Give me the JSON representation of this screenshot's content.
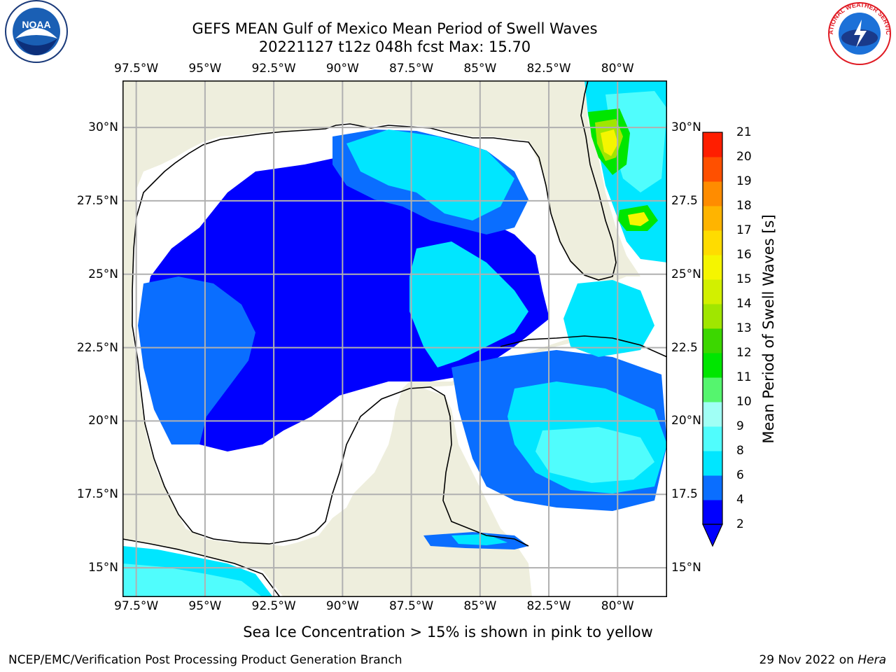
{
  "title": {
    "line1": "GEFS MEAN Gulf of Mexico Mean Period of Swell Waves",
    "line2": "20221127 t12z 048h fcst   Max: 15.70"
  },
  "axes": {
    "lon_ticks": [
      "97.5°W",
      "95°W",
      "92.5°W",
      "90°W",
      "87.5°W",
      "85°W",
      "82.5°W",
      "80°W"
    ],
    "lat_ticks_left": [
      "30°N",
      "27.5°N",
      "25°N",
      "22.5°N",
      "20°N",
      "17.5°N",
      "15°N"
    ],
    "lat_ticks_right": [
      "30°N",
      "27.5",
      "25°N",
      "22.5",
      "20°N",
      "17.5",
      "15°N"
    ],
    "lon_values": [
      -97.5,
      -95,
      -92.5,
      -90,
      -87.5,
      -85,
      -82.5,
      -80
    ],
    "lat_values": [
      30,
      27.5,
      25,
      22.5,
      20,
      17.5,
      15
    ],
    "lon_range": [
      -98,
      -78.2
    ],
    "lat_range": [
      14,
      31.6
    ],
    "gridlines": true
  },
  "colorbar": {
    "title": "Mean Period of Swell Waves [s]",
    "ticks": [
      "2",
      "4",
      "6",
      "8",
      "9",
      "10",
      "11",
      "12",
      "13",
      "14",
      "15",
      "16",
      "17",
      "18",
      "19",
      "20",
      "21"
    ],
    "levels": [
      2,
      4,
      6,
      8,
      9,
      10,
      11,
      12,
      13,
      14,
      15,
      16,
      17,
      18,
      19,
      20,
      21
    ],
    "colors": [
      "#0000ff",
      "#0a6eff",
      "#00e6ff",
      "#50fdfd",
      "#a0fff5",
      "#55f56e",
      "#00e600",
      "#3cd700",
      "#a0e600",
      "#d2f000",
      "#f5f500",
      "#ffdc00",
      "#ffb400",
      "#ff8c00",
      "#ff5000",
      "#ff1e00",
      "#ff0000"
    ],
    "extend": "min"
  },
  "colors": {
    "land": "#eeeedd",
    "no_data": "#ffffff",
    "grid": "#b0b0b0"
  },
  "footer": {
    "note": "Sea Ice Concentration > 15% is shown in pink to yellow",
    "credit": "NCEP/EMC/Verification Post Processing Product Generation Branch",
    "date": "29 Nov 2022 on",
    "host": "Hera"
  },
  "logos": {
    "left": "NOAA",
    "right": "NATIONAL WEATHER SERVICE"
  }
}
